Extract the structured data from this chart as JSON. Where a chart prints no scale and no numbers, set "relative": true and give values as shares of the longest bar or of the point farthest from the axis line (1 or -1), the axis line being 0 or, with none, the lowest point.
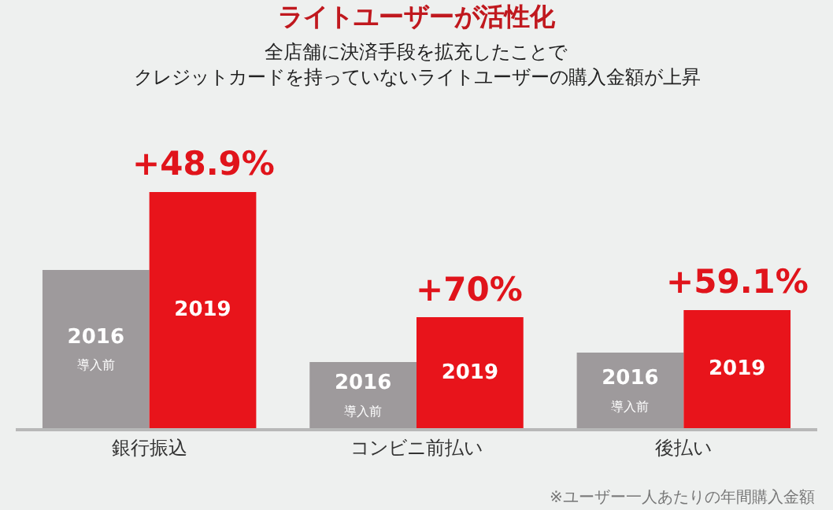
{
  "chart_data": {
    "type": "bar",
    "title": "ライトユーザーが活性化",
    "subtitle": "全店舗に決済手段を拡充したことで",
    "categories": [
      "銀行振込",
      "コンビニ前払い",
      "後払い"
    ],
    "relative": true,
    "legend": false,
    "grid": false,
    "series": [
      {
        "name": "2016\n導入前",
        "color": "#9e9a9c",
        "values": [
          0.67,
          0.28,
          0.32
        ]
      },
      {
        "name": "2019",
        "color": "#e8141b",
        "values": [
          1,
          0.47,
          0.5
        ]
      }
    ],
    "annotations": [
      {
        "text": "+48.9%",
        "x": "銀行振込",
        "y": 1
      },
      {
        "text": "+70%",
        "x": "コンビニ前払い",
        "y": 0.47
      },
      {
        "text": "+59.1%",
        "x": "後払い",
        "y": 0.5
      },
      "クレジットカードを持っていないライトユーザーの購入金額が上昇",
      "※ユーザー一人あたりの年間購入金額"
    ]
  }
}
